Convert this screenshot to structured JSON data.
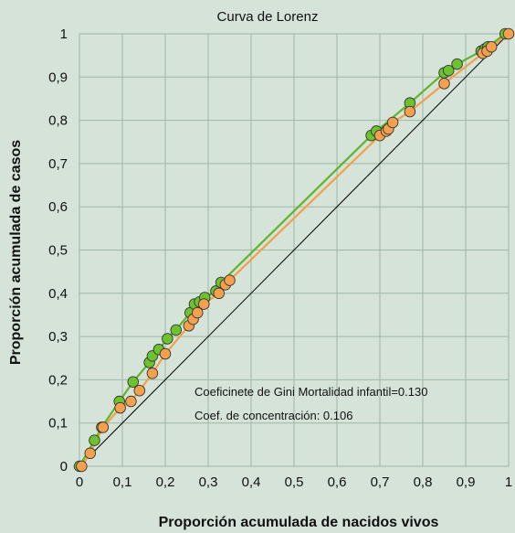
{
  "chart_data": {
    "type": "line",
    "title": "Curva de Lorenz",
    "xlabel": "Proporción acumulada de nacidos vivos",
    "ylabel": "Proporción acumulada de casos",
    "xlim": [
      0,
      1
    ],
    "ylim": [
      0,
      1
    ],
    "x_ticks": [
      "0",
      "0,1",
      "0,2",
      "0,3",
      "0,4",
      "0,5",
      "0,6",
      "0,7",
      "0,8",
      "0,9",
      "1"
    ],
    "y_ticks": [
      "0",
      "0,1",
      "0,2",
      "0,3",
      "0,4",
      "0,5",
      "0,6",
      "0,7",
      "0,8",
      "0,9",
      "1"
    ],
    "grid": true,
    "legend": "none",
    "annotations": [
      "Coeficinete de Gini Mortalidad infantil=0.130",
      "Coef. de concentración: 0.106"
    ],
    "colors": {
      "background": "#d6e3d9",
      "grid": "#9fb6a5",
      "green_series": "#5fb52e",
      "green_marker": "#6cc22f",
      "orange_series": "#f2a04a",
      "orange_marker": "#f5a04e",
      "marker_edge": "#333333",
      "equality_line": "#000000"
    },
    "series": [
      {
        "color": "green",
        "x": [
          0.0,
          0.035,
          0.052,
          0.093,
          0.125,
          0.163,
          0.17,
          0.185,
          0.205,
          0.225,
          0.258,
          0.268,
          0.28,
          0.292,
          0.318,
          0.33,
          0.68,
          0.692,
          0.77,
          0.85,
          0.86,
          0.88,
          0.936,
          0.945,
          0.952,
          0.992
        ],
        "y": [
          0.0,
          0.06,
          0.09,
          0.15,
          0.195,
          0.24,
          0.255,
          0.27,
          0.295,
          0.315,
          0.355,
          0.375,
          0.38,
          0.39,
          0.405,
          0.425,
          0.765,
          0.775,
          0.84,
          0.91,
          0.915,
          0.93,
          0.96,
          0.965,
          0.97,
          1.0
        ]
      },
      {
        "color": "orange",
        "x": [
          0.005,
          0.025,
          0.055,
          0.095,
          0.12,
          0.14,
          0.17,
          0.2,
          0.255,
          0.265,
          0.275,
          0.29,
          0.325,
          0.34,
          0.35,
          0.7,
          0.715,
          0.72,
          0.73,
          0.77,
          0.85,
          0.94,
          0.95,
          0.96,
          1.0
        ],
        "y": [
          0.0,
          0.03,
          0.09,
          0.135,
          0.15,
          0.175,
          0.215,
          0.26,
          0.325,
          0.34,
          0.355,
          0.375,
          0.4,
          0.42,
          0.43,
          0.765,
          0.775,
          0.78,
          0.795,
          0.82,
          0.885,
          0.955,
          0.96,
          0.97,
          1.0
        ]
      }
    ]
  }
}
